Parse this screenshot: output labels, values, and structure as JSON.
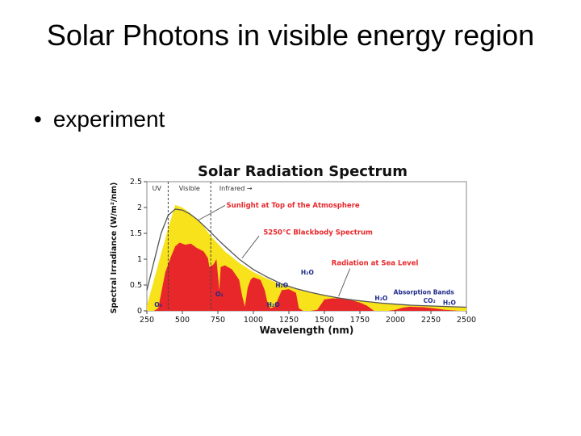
{
  "slide": {
    "title": "Solar Photons in visible energy region",
    "bullet": "experiment"
  },
  "chart_data": {
    "type": "area",
    "title": "Solar Radiation Spectrum",
    "xlabel": "Wavelength (nm)",
    "ylabel": "Spectral Irradiance (W/m²/nm)",
    "xlim": [
      250,
      2500
    ],
    "ylim": [
      0,
      2.5
    ],
    "x_ticks": [
      "250",
      "500",
      "750",
      "1000",
      "1250",
      "1500",
      "1750",
      "2000",
      "2250",
      "2500"
    ],
    "y_ticks": [
      "0",
      "0.5",
      "1",
      "1.5",
      "2",
      "2.5"
    ],
    "regions": [
      {
        "label": "UV"
      },
      {
        "label": "Visible"
      },
      {
        "label": "Infrared →"
      }
    ],
    "colors": {
      "top_of_atmosphere": "#f7e21b",
      "sea_level": "#e8272b",
      "blackbody": "#555555",
      "annotation": "#e8272b",
      "absorption": "#1f2a8a"
    },
    "series": [
      {
        "name": "Sunlight at Top of the Atmosphere",
        "x": [
          250,
          300,
          350,
          400,
          450,
          500,
          550,
          600,
          650,
          700,
          750,
          800,
          900,
          1000,
          1100,
          1200,
          1300,
          1400,
          1500,
          1600,
          1700,
          1800,
          1900,
          2000,
          2100,
          2200,
          2300,
          2400,
          2500
        ],
        "y": [
          0.1,
          0.6,
          1.1,
          1.6,
          2.05,
          2.0,
          1.9,
          1.78,
          1.63,
          1.45,
          1.3,
          1.15,
          0.93,
          0.75,
          0.62,
          0.5,
          0.42,
          0.35,
          0.3,
          0.25,
          0.21,
          0.18,
          0.15,
          0.13,
          0.11,
          0.1,
          0.09,
          0.08,
          0.07
        ]
      },
      {
        "name": "5250°C Blackbody Spectrum",
        "x": [
          250,
          300,
          350,
          400,
          450,
          500,
          550,
          600,
          650,
          700,
          750,
          800,
          900,
          1000,
          1100,
          1200,
          1300,
          1400,
          1500,
          1600,
          1700,
          1800,
          1900,
          2000,
          2100,
          2200,
          2300,
          2400,
          2500
        ],
        "y": [
          0.4,
          0.95,
          1.5,
          1.85,
          1.97,
          1.95,
          1.88,
          1.78,
          1.65,
          1.52,
          1.38,
          1.25,
          1.0,
          0.8,
          0.65,
          0.52,
          0.43,
          0.36,
          0.3,
          0.25,
          0.21,
          0.18,
          0.15,
          0.13,
          0.11,
          0.1,
          0.09,
          0.08,
          0.07
        ]
      },
      {
        "name": "Radiation at Sea Level",
        "x": [
          250,
          300,
          330,
          380,
          420,
          450,
          480,
          520,
          560,
          600,
          650,
          680,
          690,
          720,
          740,
          760,
          770,
          800,
          850,
          900,
          920,
          940,
          960,
          980,
          1000,
          1050,
          1080,
          1100,
          1120,
          1150,
          1200,
          1250,
          1300,
          1320,
          1350,
          1400,
          1450,
          1500,
          1550,
          1600,
          1650,
          1700,
          1750,
          1800,
          1850,
          1900,
          1950,
          2000,
          2050,
          2100,
          2200,
          2300,
          2350,
          2400,
          2450,
          2500
        ],
        "y": [
          0,
          0,
          0.05,
          0.75,
          1.05,
          1.25,
          1.32,
          1.28,
          1.3,
          1.22,
          1.15,
          1.02,
          0.85,
          0.9,
          1.0,
          0.4,
          0.85,
          0.88,
          0.8,
          0.6,
          0.3,
          0.08,
          0.45,
          0.6,
          0.65,
          0.6,
          0.4,
          0.15,
          0.05,
          0.08,
          0.4,
          0.42,
          0.35,
          0.05,
          0.0,
          0.0,
          0.02,
          0.22,
          0.24,
          0.24,
          0.22,
          0.2,
          0.16,
          0.1,
          0.0,
          0.0,
          0.0,
          0.02,
          0.06,
          0.08,
          0.07,
          0.04,
          0.02,
          0.01,
          0.0,
          0.0
        ]
      }
    ],
    "annotations": [
      {
        "text": "Sunlight at Top of the Atmosphere",
        "color": "#e8272b"
      },
      {
        "text": "5250°C Blackbody Spectrum",
        "color": "#e8272b"
      },
      {
        "text": "Radiation at Sea Level",
        "color": "#e8272b"
      },
      {
        "text": "Absorption Bands",
        "color": "#1f2a8a"
      },
      {
        "text": "H₂O",
        "color": "#1f2a8a"
      },
      {
        "text": "CO₂",
        "color": "#1f2a8a"
      },
      {
        "text": "O₃",
        "color": "#1f2a8a"
      },
      {
        "text": "O₂",
        "color": "#1f2a8a"
      }
    ],
    "grid": false,
    "legend": "none"
  }
}
